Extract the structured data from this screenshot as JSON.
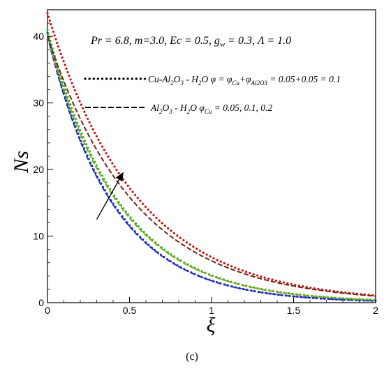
{
  "chart_data": {
    "type": "line",
    "title": "",
    "panel_label": "(c)",
    "xlabel": "ξ",
    "ylabel": "Ns",
    "xlim": [
      0,
      2
    ],
    "ylim": [
      0,
      44
    ],
    "x_ticks": [
      0,
      0.5,
      1,
      1.5,
      2
    ],
    "x_tick_labels": [
      "0",
      "0.5",
      "1",
      "1.5",
      "2"
    ],
    "y_ticks": [
      0,
      10,
      20,
      30,
      40
    ],
    "y_tick_labels": [
      "0",
      "10",
      "20",
      "30",
      "40"
    ],
    "grid": false,
    "annotations": {
      "params": "Pr = 6.8, m=3.0, Ec = 0.5, g",
      "params_sub": "w",
      "params_tail": " = 0.3, Λ = 1.0",
      "legend_dotted": {
        "a": "Cu-Al",
        "a_sub1": "2",
        "b": "O",
        "b_sub2": "3",
        "c": " - H",
        "c_sub3": "2",
        "d": "O φ = φ",
        "d_sub4": "Cu",
        "e": "+φ",
        "e_sub5": "Al2O3",
        "f": " = 0.05+0.05 = 0.1"
      },
      "legend_dashed": {
        "a": "Al",
        "a_sub1": "2",
        "b": "O",
        "b_sub2": "3",
        "c": " - H",
        "c_sub3": "2",
        "d": "O  φ",
        "d_sub4": "Cu",
        "e": " = 0.05, 0.1, 0.2"
      }
    },
    "arrow": {
      "from": [
        0.3,
        12.5
      ],
      "to": [
        0.46,
        19.5
      ]
    },
    "series": [
      {
        "style": "dotted",
        "color": "#1f2fbf",
        "y0": 40.5,
        "decay": 2.5
      },
      {
        "style": "dashed",
        "color": "#1f2fbf",
        "y0": 40.0,
        "decay": 2.5
      },
      {
        "style": "dotted",
        "color": "#22b822",
        "y0": 41.0,
        "decay": 2.3
      },
      {
        "style": "dashed",
        "color": "#8aa01e",
        "y0": 40.2,
        "decay": 2.3
      },
      {
        "style": "dotted",
        "color": "#cc1111",
        "y0": 43.5,
        "decay": 1.85
      },
      {
        "style": "dashed",
        "color": "#6b2a14",
        "y0": 40.0,
        "decay": 1.85
      }
    ],
    "series_x": [
      0,
      0.1,
      0.2,
      0.3,
      0.4,
      0.5,
      0.6,
      0.7,
      0.8,
      0.9,
      1.0,
      1.1,
      1.2,
      1.3,
      1.4,
      1.5,
      1.6,
      1.7,
      1.8,
      1.9,
      2.0
    ]
  }
}
